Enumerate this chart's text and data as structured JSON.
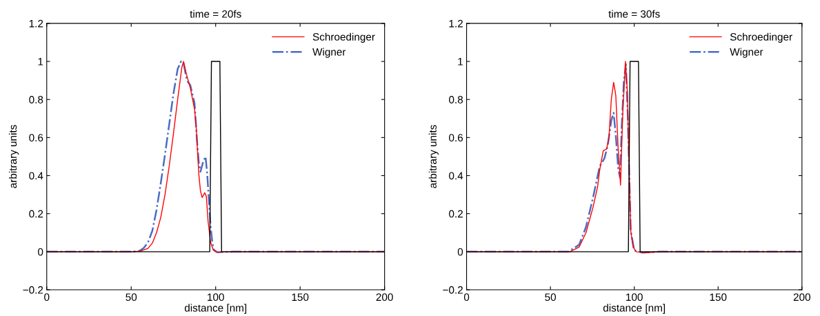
{
  "chart_data": [
    {
      "type": "line",
      "title": "time = 20fs",
      "xlabel": "distance [nm]",
      "ylabel": "arbitrary units",
      "xlim": [
        0,
        200
      ],
      "ylim": [
        -0.2,
        1.2
      ],
      "xticks": [
        0,
        50,
        100,
        150,
        200
      ],
      "yticks": [
        {
          "value": -0.2,
          "label": "−0.2"
        },
        0,
        0.2,
        0.4,
        0.6,
        0.8,
        1,
        1.2
      ],
      "grid": false,
      "legend": "top right",
      "series": [
        {
          "name": "Schroedinger",
          "color": "#ff0000",
          "line_style": "solid",
          "x": [
            0,
            50,
            55,
            57.5,
            60,
            62.5,
            65,
            67.5,
            70,
            72.5,
            75,
            77.5,
            80,
            81,
            82.5,
            85,
            87.5,
            88.5,
            90,
            91,
            92,
            93.5,
            94.5,
            95.5,
            97,
            98.5,
            100,
            101,
            105,
            200
          ],
          "values": [
            0,
            0,
            0.002,
            0.01,
            0.018,
            0.045,
            0.1,
            0.18,
            0.3,
            0.45,
            0.62,
            0.8,
            0.97,
            1,
            0.94,
            0.86,
            0.75,
            0.65,
            0.41,
            0.32,
            0.285,
            0.31,
            0.29,
            0.16,
            0.05,
            0.01,
            0,
            -0.002,
            0,
            0
          ]
        },
        {
          "name": "Wigner",
          "color": "#4a6cc4",
          "line_style": "dashdot",
          "x": [
            0,
            50,
            55,
            57.5,
            60,
            62.5,
            65,
            67.5,
            70,
            72.5,
            75,
            77.5,
            79.5,
            81,
            83,
            85,
            87.5,
            89,
            90,
            91,
            92.5,
            94,
            95,
            96,
            97,
            98,
            99,
            101,
            110,
            200
          ],
          "values": [
            0,
            0,
            0.005,
            0.02,
            0.05,
            0.11,
            0.22,
            0.36,
            0.51,
            0.67,
            0.83,
            0.96,
            1,
            0.99,
            0.9,
            0.875,
            0.78,
            0.58,
            0.47,
            0.42,
            0.47,
            0.5,
            0.41,
            0.27,
            0.135,
            0.05,
            0.01,
            -0.003,
            0,
            0
          ]
        },
        {
          "color": "#000000",
          "line_style": "solid",
          "x": [
            0,
            96.5,
            97.5,
            102.5,
            103.5,
            200
          ],
          "values": [
            0,
            0,
            1,
            1,
            0,
            0
          ]
        }
      ]
    },
    {
      "type": "line",
      "title": "time = 30fs",
      "xlabel": "distance [nm]",
      "ylabel": "arbitrary units",
      "xlim": [
        0,
        200
      ],
      "ylim": [
        -0.2,
        1.2
      ],
      "xticks": [
        0,
        50,
        100,
        150,
        200
      ],
      "yticks": [
        {
          "value": -0.2,
          "label": "−0.2"
        },
        0,
        0.2,
        0.4,
        0.6,
        0.8,
        1,
        1.2
      ],
      "grid": false,
      "legend": "top right",
      "series": [
        {
          "name": "Schroedinger",
          "color": "#ff0000",
          "line_style": "solid",
          "x": [
            0,
            55,
            61.6,
            67.1,
            71.2,
            75.3,
            78.1,
            79.4,
            81.5,
            83.5,
            84.9,
            86.3,
            87.7,
            89,
            90.4,
            91.8,
            93.1,
            94.5,
            94.7,
            95.9,
            97,
            97.9,
            99.3,
            101.2,
            107,
            115,
            200
          ],
          "values": [
            0,
            0,
            0,
            0.024,
            0.1,
            0.23,
            0.34,
            0.43,
            0.53,
            0.54,
            0.6,
            0.8,
            0.89,
            0.82,
            0.54,
            0.35,
            0.72,
            0.96,
            1,
            0.84,
            0.41,
            0.11,
            0.024,
            0,
            -0.005,
            0,
            0
          ]
        },
        {
          "name": "Wigner",
          "color": "#4a6cc4",
          "line_style": "dashdot",
          "x": [
            0,
            55,
            60.5,
            67.1,
            71.2,
            75.3,
            79.4,
            82.2,
            84.2,
            86.3,
            87.7,
            89,
            90.4,
            91.5,
            92.5,
            93.8,
            94.7,
            95,
            96.1,
            97,
            97.9,
            100,
            105,
            115,
            200
          ],
          "values": [
            0,
            0,
            0,
            0.036,
            0.13,
            0.28,
            0.45,
            0.49,
            0.56,
            0.69,
            0.73,
            0.61,
            0.44,
            0.39,
            0.65,
            0.9,
            0.96,
            0.985,
            0.72,
            0.41,
            0.11,
            0.006,
            -0.005,
            0,
            0
          ]
        },
        {
          "color": "#000000",
          "line_style": "solid",
          "x": [
            0,
            96.5,
            97.5,
            102.5,
            103.5,
            200
          ],
          "values": [
            0,
            0,
            1,
            1,
            0,
            0
          ]
        }
      ]
    }
  ]
}
